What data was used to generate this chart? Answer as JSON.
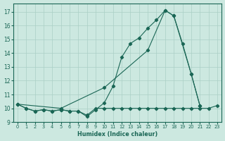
{
  "xlabel": "Humidex (Indice chaleur)",
  "bg_color": "#cce8e0",
  "grid_color": "#aacfc5",
  "line_color": "#1a6655",
  "xlim": [
    -0.5,
    23.5
  ],
  "ylim": [
    9.0,
    17.6
  ],
  "yticks": [
    9,
    10,
    11,
    12,
    13,
    14,
    15,
    16,
    17
  ],
  "xticks": [
    0,
    1,
    2,
    3,
    4,
    5,
    6,
    7,
    8,
    9,
    10,
    11,
    12,
    13,
    14,
    15,
    16,
    17,
    18,
    19,
    20,
    21,
    22,
    23
  ],
  "line1_x": [
    0,
    1,
    2,
    3,
    4,
    5,
    6,
    7,
    8,
    9,
    10,
    11,
    12,
    13,
    14,
    15,
    16,
    17,
    18,
    19,
    20,
    21
  ],
  "line1_y": [
    10.3,
    10.0,
    9.8,
    9.9,
    9.8,
    9.9,
    9.8,
    9.8,
    9.4,
    9.9,
    10.4,
    11.6,
    13.7,
    14.7,
    15.1,
    15.8,
    16.4,
    17.1,
    16.7,
    14.7,
    12.5,
    10.2
  ],
  "line2_x": [
    0,
    1,
    2,
    3,
    4,
    5,
    6,
    7,
    8,
    9,
    10,
    11,
    12,
    13,
    14,
    15,
    16,
    17,
    18,
    19,
    20,
    21,
    22,
    23
  ],
  "line2_y": [
    10.3,
    10.0,
    9.8,
    9.9,
    9.8,
    9.9,
    9.8,
    9.8,
    9.5,
    10.0,
    10.0,
    10.0,
    10.0,
    10.0,
    10.0,
    10.0,
    10.0,
    10.0,
    10.0,
    10.0,
    10.0,
    10.0,
    10.0,
    10.2
  ],
  "line3_x": [
    0,
    5,
    10,
    15,
    17,
    18,
    20,
    21
  ],
  "line3_y": [
    10.3,
    10.0,
    11.5,
    14.2,
    17.1,
    16.7,
    12.5,
    10.2
  ]
}
